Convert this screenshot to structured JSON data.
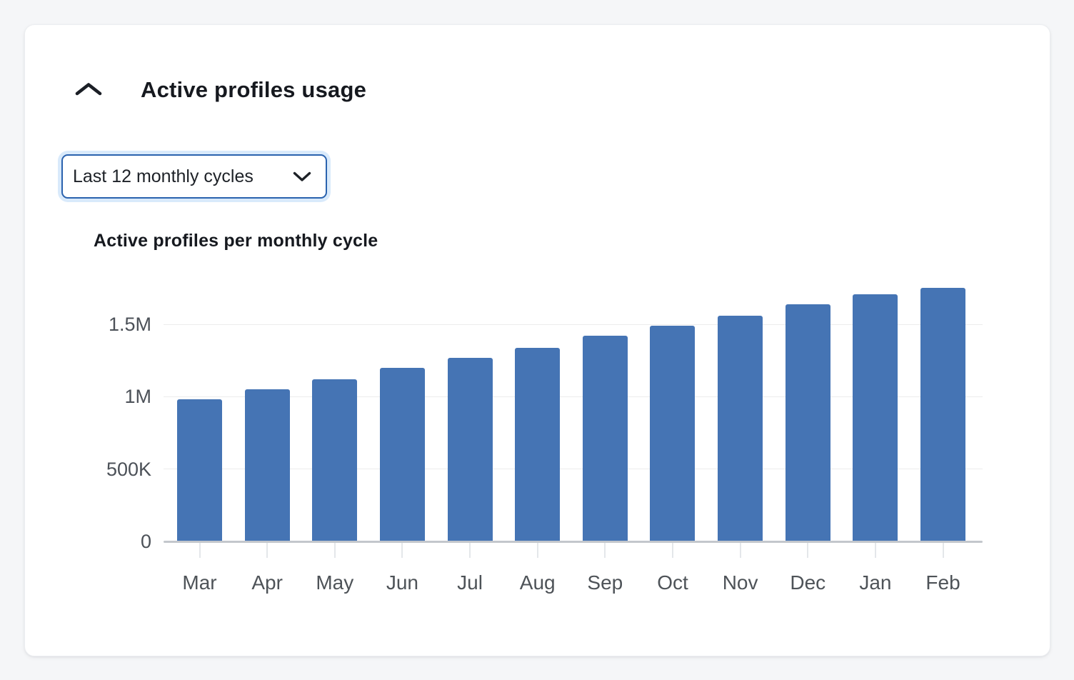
{
  "header": {
    "title": "Active profiles usage"
  },
  "filter": {
    "selected": "Last 12 monthly cycles"
  },
  "colors": {
    "bar": "#4574b4",
    "dropdown_border": "#2a62ae",
    "focus_ring": "#d9eafb",
    "page_background": "#f5f6f8"
  },
  "chart_data": {
    "type": "bar",
    "title": "Active profiles per monthly cycle",
    "categories": [
      "Mar",
      "Apr",
      "May",
      "Jun",
      "Jul",
      "Aug",
      "Sep",
      "Oct",
      "Nov",
      "Dec",
      "Jan",
      "Feb"
    ],
    "values": [
      980000,
      1050000,
      1120000,
      1200000,
      1270000,
      1340000,
      1420000,
      1490000,
      1560000,
      1640000,
      1710000,
      1750000
    ],
    "xlabel": "",
    "ylabel": "",
    "y_ticks": [
      {
        "label": "0",
        "value": 0
      },
      {
        "label": "500K",
        "value": 500000
      },
      {
        "label": "1M",
        "value": 1000000
      },
      {
        "label": "1.5M",
        "value": 1500000
      }
    ],
    "ylim": [
      0,
      1810000
    ],
    "grid": true,
    "legend": "none",
    "bar_color": "#4574b4"
  }
}
